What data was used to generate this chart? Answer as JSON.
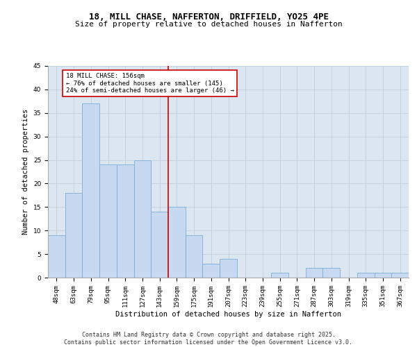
{
  "title1": "18, MILL CHASE, NAFFERTON, DRIFFIELD, YO25 4PE",
  "title2": "Size of property relative to detached houses in Nafferton",
  "xlabel": "Distribution of detached houses by size in Nafferton",
  "ylabel": "Number of detached properties",
  "categories": [
    "48sqm",
    "63sqm",
    "79sqm",
    "95sqm",
    "111sqm",
    "127sqm",
    "143sqm",
    "159sqm",
    "175sqm",
    "191sqm",
    "207sqm",
    "223sqm",
    "239sqm",
    "255sqm",
    "271sqm",
    "287sqm",
    "303sqm",
    "319sqm",
    "335sqm",
    "351sqm",
    "367sqm"
  ],
  "values": [
    9,
    18,
    37,
    24,
    24,
    25,
    14,
    15,
    9,
    3,
    4,
    0,
    0,
    1,
    0,
    2,
    2,
    0,
    1,
    1,
    1
  ],
  "bar_color": "#c6d9f1",
  "bar_edge_color": "#7bafd4",
  "grid_color": "#c0cfe0",
  "background_color": "#dce6f1",
  "vline_color": "#cc0000",
  "annotation_text": "18 MILL CHASE: 156sqm\n← 76% of detached houses are smaller (145)\n24% of semi-detached houses are larger (46) →",
  "annotation_box_color": "#ffffff",
  "annotation_border_color": "#cc0000",
  "ylim": [
    0,
    45
  ],
  "yticks": [
    0,
    5,
    10,
    15,
    20,
    25,
    30,
    35,
    40,
    45
  ],
  "footer": "Contains HM Land Registry data © Crown copyright and database right 2025.\nContains public sector information licensed under the Open Government Licence v3.0.",
  "title_fontsize": 9,
  "subtitle_fontsize": 8,
  "axis_label_fontsize": 7.5,
  "tick_fontsize": 6.5,
  "footer_fontsize": 6,
  "ann_fontsize": 6.5
}
